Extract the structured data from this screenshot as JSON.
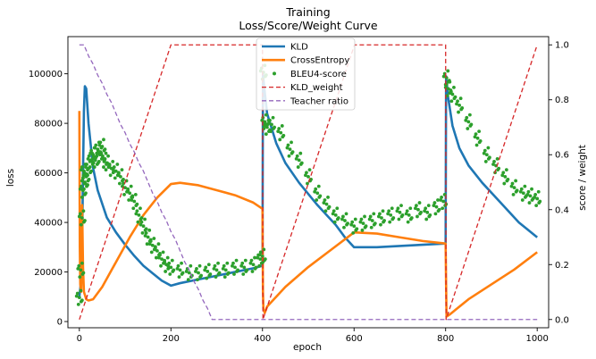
{
  "chart_data": {
    "type": "line",
    "title": "Training",
    "subtitle": "Loss/Score/Weight Curve",
    "xlabel": "epoch",
    "ylabel": "loss",
    "y2label": "score / weight",
    "xlim": [
      -25,
      1025
    ],
    "ylim": [
      -2500,
      115000
    ],
    "y2lim": [
      -0.03,
      1.03
    ],
    "xticks": [
      0,
      200,
      400,
      600,
      800,
      1000
    ],
    "yticks": [
      0,
      20000,
      40000,
      60000,
      80000,
      100000
    ],
    "y2ticks": [
      0.0,
      0.2,
      0.4,
      0.6,
      0.8,
      1.0
    ],
    "xtick_labels": [
      "0",
      "200",
      "400",
      "600",
      "800",
      "1000"
    ],
    "ytick_labels": [
      "0",
      "20000",
      "40000",
      "60000",
      "80000",
      "100000"
    ],
    "y2tick_labels": [
      "0.0",
      "0.2",
      "0.4",
      "0.6",
      "0.8",
      "1.0"
    ],
    "grid": false,
    "legend_position": "top-center",
    "legend": [
      "KLD",
      "CrossEntropy",
      "BLEU4-score",
      "KLD_weight",
      "Teacher ratio"
    ],
    "series": [
      {
        "name": "KLD",
        "axis": "left",
        "style": "line",
        "color": "#1f77b4",
        "points": [
          [
            0,
            10000
          ],
          [
            3,
            15000
          ],
          [
            6,
            30000
          ],
          [
            8,
            60000
          ],
          [
            10,
            85000
          ],
          [
            12,
            95000
          ],
          [
            15,
            94000
          ],
          [
            20,
            80000
          ],
          [
            30,
            62000
          ],
          [
            40,
            53000
          ],
          [
            60,
            42000
          ],
          [
            80,
            36000
          ],
          [
            100,
            31000
          ],
          [
            120,
            26500
          ],
          [
            140,
            22500
          ],
          [
            160,
            19500
          ],
          [
            180,
            16500
          ],
          [
            200,
            14500
          ],
          [
            220,
            15500
          ],
          [
            260,
            17000
          ],
          [
            300,
            18500
          ],
          [
            340,
            20000
          ],
          [
            380,
            21500
          ],
          [
            400,
            22500
          ],
          [
            401,
            100000
          ],
          [
            403,
            96000
          ],
          [
            410,
            84000
          ],
          [
            430,
            72000
          ],
          [
            450,
            64000
          ],
          [
            480,
            56000
          ],
          [
            520,
            47000
          ],
          [
            560,
            39000
          ],
          [
            580,
            34000
          ],
          [
            600,
            30000
          ],
          [
            650,
            30000
          ],
          [
            700,
            30500
          ],
          [
            750,
            31000
          ],
          [
            800,
            31500
          ],
          [
            801,
            99000
          ],
          [
            805,
            91000
          ],
          [
            815,
            79000
          ],
          [
            830,
            70000
          ],
          [
            850,
            63000
          ],
          [
            880,
            56000
          ],
          [
            920,
            48000
          ],
          [
            960,
            40000
          ],
          [
            1000,
            34000
          ]
        ]
      },
      {
        "name": "CrossEntropy",
        "axis": "left",
        "style": "line",
        "color": "#ff7f0e",
        "points": [
          [
            0,
            85000
          ],
          [
            1,
            30000
          ],
          [
            2,
            15000
          ],
          [
            4,
            12000
          ],
          [
            6,
            47000
          ],
          [
            8,
            22000
          ],
          [
            10,
            12000
          ],
          [
            15,
            9000
          ],
          [
            20,
            8500
          ],
          [
            30,
            9000
          ],
          [
            50,
            14000
          ],
          [
            80,
            24000
          ],
          [
            110,
            34000
          ],
          [
            140,
            43000
          ],
          [
            170,
            50000
          ],
          [
            200,
            55500
          ],
          [
            220,
            56000
          ],
          [
            260,
            55000
          ],
          [
            300,
            53000
          ],
          [
            340,
            51000
          ],
          [
            380,
            48000
          ],
          [
            400,
            45500
          ],
          [
            401,
            12000
          ],
          [
            402,
            5000
          ],
          [
            405,
            3500
          ],
          [
            410,
            6000
          ],
          [
            450,
            14000
          ],
          [
            500,
            22000
          ],
          [
            550,
            29000
          ],
          [
            600,
            36000
          ],
          [
            650,
            35500
          ],
          [
            700,
            34000
          ],
          [
            750,
            32500
          ],
          [
            800,
            31500
          ],
          [
            801,
            15000
          ],
          [
            802,
            2000
          ],
          [
            810,
            3000
          ],
          [
            850,
            9000
          ],
          [
            900,
            15000
          ],
          [
            950,
            21000
          ],
          [
            1000,
            28000
          ]
        ]
      },
      {
        "name": "BLEU4-score",
        "axis": "right",
        "style": "scatter",
        "color": "#2ca02c",
        "points": [
          [
            0,
            0.08
          ],
          [
            3,
            0.18
          ],
          [
            6,
            0.37
          ],
          [
            8,
            0.47
          ],
          [
            10,
            0.54
          ],
          [
            12,
            0.5
          ],
          [
            15,
            0.52
          ],
          [
            20,
            0.55
          ],
          [
            25,
            0.58
          ],
          [
            30,
            0.6
          ],
          [
            35,
            0.58
          ],
          [
            40,
            0.62
          ],
          [
            45,
            0.6
          ],
          [
            50,
            0.63
          ],
          [
            55,
            0.58
          ],
          [
            60,
            0.57
          ],
          [
            70,
            0.55
          ],
          [
            80,
            0.54
          ],
          [
            90,
            0.52
          ],
          [
            100,
            0.48
          ],
          [
            110,
            0.46
          ],
          [
            120,
            0.43
          ],
          [
            130,
            0.38
          ],
          [
            140,
            0.34
          ],
          [
            150,
            0.3
          ],
          [
            160,
            0.27
          ],
          [
            170,
            0.25
          ],
          [
            180,
            0.22
          ],
          [
            190,
            0.2
          ],
          [
            200,
            0.19
          ],
          [
            220,
            0.18
          ],
          [
            240,
            0.17
          ],
          [
            260,
            0.17
          ],
          [
            280,
            0.175
          ],
          [
            300,
            0.18
          ],
          [
            320,
            0.18
          ],
          [
            340,
            0.19
          ],
          [
            360,
            0.19
          ],
          [
            380,
            0.2
          ],
          [
            395,
            0.22
          ],
          [
            400,
            0.23
          ],
          [
            402,
            0.9
          ],
          [
            405,
            0.72
          ],
          [
            410,
            0.7
          ],
          [
            420,
            0.71
          ],
          [
            440,
            0.68
          ],
          [
            460,
            0.62
          ],
          [
            480,
            0.58
          ],
          [
            500,
            0.52
          ],
          [
            520,
            0.46
          ],
          [
            540,
            0.42
          ],
          [
            560,
            0.38
          ],
          [
            580,
            0.36
          ],
          [
            600,
            0.34
          ],
          [
            620,
            0.35
          ],
          [
            640,
            0.36
          ],
          [
            660,
            0.37
          ],
          [
            680,
            0.38
          ],
          [
            700,
            0.39
          ],
          [
            720,
            0.38
          ],
          [
            740,
            0.4
          ],
          [
            760,
            0.39
          ],
          [
            780,
            0.41
          ],
          [
            795,
            0.43
          ],
          [
            802,
            0.88
          ],
          [
            806,
            0.84
          ],
          [
            815,
            0.82
          ],
          [
            830,
            0.78
          ],
          [
            850,
            0.72
          ],
          [
            870,
            0.66
          ],
          [
            890,
            0.6
          ],
          [
            910,
            0.56
          ],
          [
            930,
            0.52
          ],
          [
            950,
            0.48
          ],
          [
            970,
            0.46
          ],
          [
            985,
            0.45
          ],
          [
            1000,
            0.44
          ]
        ]
      },
      {
        "name": "KLD_weight",
        "axis": "right",
        "style": "dashed",
        "color": "#d62728",
        "points": [
          [
            0,
            0.0
          ],
          [
            200,
            1.0
          ],
          [
            400,
            1.0
          ],
          [
            401,
            0.0
          ],
          [
            601,
            1.0
          ],
          [
            800,
            1.0
          ],
          [
            801,
            0.0
          ],
          [
            1000,
            1.0
          ]
        ]
      },
      {
        "name": "Teacher ratio",
        "axis": "right",
        "style": "dashed",
        "color": "#9467bd",
        "points": [
          [
            0,
            1.0
          ],
          [
            10,
            1.0
          ],
          [
            20,
            0.96
          ],
          [
            30,
            0.93
          ],
          [
            40,
            0.89
          ],
          [
            50,
            0.86
          ],
          [
            60,
            0.82
          ],
          [
            70,
            0.79
          ],
          [
            80,
            0.75
          ],
          [
            90,
            0.71
          ],
          [
            100,
            0.68
          ],
          [
            110,
            0.64
          ],
          [
            120,
            0.61
          ],
          [
            130,
            0.57
          ],
          [
            140,
            0.54
          ],
          [
            150,
            0.5
          ],
          [
            160,
            0.46
          ],
          [
            170,
            0.43
          ],
          [
            180,
            0.39
          ],
          [
            190,
            0.36
          ],
          [
            200,
            0.32
          ],
          [
            210,
            0.29
          ],
          [
            220,
            0.25
          ],
          [
            230,
            0.21
          ],
          [
            240,
            0.18
          ],
          [
            250,
            0.14
          ],
          [
            260,
            0.11
          ],
          [
            270,
            0.07
          ],
          [
            280,
            0.04
          ],
          [
            290,
            0.0
          ],
          [
            1000,
            0.0
          ]
        ]
      }
    ]
  }
}
